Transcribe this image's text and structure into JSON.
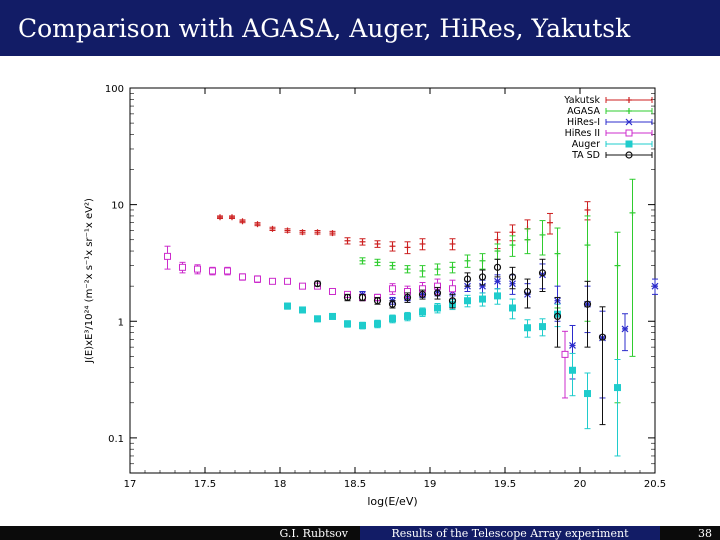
{
  "slide": {
    "title": "Comparison with AGASA, Auger, HiRes, Yakutsk",
    "author": "G.I. Rubtsov",
    "talk": "Results of the Telescope Array experiment",
    "page": "38"
  },
  "colors": {
    "title_bar": "#121c66",
    "footer_dark": "#0b0b0b"
  },
  "chart_data": {
    "type": "scatter",
    "xlabel": "log(E/eV)",
    "ylabel": "J(E)xE³/10²⁴ (m⁻²x s⁻¹x sr⁻¹x eV²)",
    "xlim": [
      17,
      20.5
    ],
    "ylim": [
      0.05,
      100
    ],
    "yscale": "log",
    "xticks": [
      "17",
      "17.5",
      "18",
      "18.5",
      "19",
      "19.5",
      "20",
      "20.5"
    ],
    "yticks": [
      "0.1",
      "1",
      "10",
      "100"
    ],
    "legend": {
      "placement": "top-right"
    },
    "series": [
      {
        "name": "Yakutsk",
        "color": "#cc1f1f",
        "marker": "plus",
        "points": [
          [
            17.6,
            7.8,
            0.2
          ],
          [
            17.68,
            7.8,
            0.2
          ],
          [
            17.75,
            7.2,
            0.2
          ],
          [
            17.85,
            6.8,
            0.2
          ],
          [
            17.95,
            6.2,
            0.2
          ],
          [
            18.05,
            6.0,
            0.2
          ],
          [
            18.15,
            5.8,
            0.2
          ],
          [
            18.25,
            5.8,
            0.2
          ],
          [
            18.35,
            5.7,
            0.2
          ],
          [
            18.45,
            4.9,
            0.3
          ],
          [
            18.55,
            4.8,
            0.3
          ],
          [
            18.65,
            4.6,
            0.3
          ],
          [
            18.75,
            4.4,
            0.4
          ],
          [
            18.85,
            4.3,
            0.5
          ],
          [
            18.95,
            4.6,
            0.5
          ],
          [
            19.15,
            4.6,
            0.5
          ],
          [
            19.45,
            5.0,
            0.8
          ],
          [
            19.55,
            5.8,
            0.9
          ],
          [
            19.65,
            6.2,
            1.2
          ],
          [
            19.8,
            7.0,
            1.4
          ],
          [
            20.05,
            9.0,
            1.6
          ]
        ]
      },
      {
        "name": "AGASA",
        "color": "#2fcc2f",
        "marker": "plus",
        "points": [
          [
            18.55,
            3.3,
            0.2
          ],
          [
            18.65,
            3.2,
            0.2
          ],
          [
            18.75,
            3.0,
            0.2
          ],
          [
            18.85,
            2.8,
            0.2
          ],
          [
            18.95,
            2.7,
            0.3
          ],
          [
            19.05,
            2.8,
            0.3
          ],
          [
            19.15,
            2.9,
            0.3
          ],
          [
            19.25,
            3.3,
            0.4
          ],
          [
            19.35,
            3.3,
            0.5
          ],
          [
            19.45,
            4.0,
            0.6
          ],
          [
            19.55,
            4.5,
            0.9
          ],
          [
            19.65,
            5.0,
            1.2
          ],
          [
            19.75,
            5.5,
            1.8
          ],
          [
            19.85,
            3.8,
            2.5
          ],
          [
            20.05,
            4.5,
            3.5
          ],
          [
            20.25,
            3.0,
            2.8
          ],
          [
            20.35,
            8.5,
            8.0
          ]
        ]
      },
      {
        "name": "HiRes-I",
        "color": "#2c2ccc",
        "marker": "star",
        "points": [
          [
            18.55,
            1.7,
            0.1
          ],
          [
            18.65,
            1.6,
            0.1
          ],
          [
            18.75,
            1.5,
            0.1
          ],
          [
            18.85,
            1.6,
            0.1
          ],
          [
            18.95,
            1.7,
            0.1
          ],
          [
            19.05,
            1.8,
            0.15
          ],
          [
            19.15,
            1.8,
            0.15
          ],
          [
            19.25,
            2.0,
            0.2
          ],
          [
            19.35,
            2.0,
            0.25
          ],
          [
            19.45,
            2.2,
            0.3
          ],
          [
            19.55,
            2.1,
            0.4
          ],
          [
            19.65,
            1.7,
            0.4
          ],
          [
            19.75,
            2.5,
            0.6
          ],
          [
            19.85,
            1.5,
            0.5
          ],
          [
            19.95,
            0.62,
            0.3
          ],
          [
            20.05,
            1.4,
            0.6
          ],
          [
            20.15,
            0.72,
            0.5
          ],
          [
            20.3,
            0.86,
            0.3
          ],
          [
            20.5,
            2.0,
            0.3
          ]
        ]
      },
      {
        "name": "HiRes II",
        "color": "#cc2ccc",
        "marker": "square-open",
        "points": [
          [
            17.25,
            3.6,
            0.8
          ],
          [
            17.35,
            2.9,
            0.3
          ],
          [
            17.45,
            2.8,
            0.25
          ],
          [
            17.55,
            2.7,
            0.2
          ],
          [
            17.65,
            2.7,
            0.2
          ],
          [
            17.75,
            2.4,
            0.15
          ],
          [
            17.85,
            2.3,
            0.15
          ],
          [
            17.95,
            2.2,
            0.1
          ],
          [
            18.05,
            2.2,
            0.1
          ],
          [
            18.15,
            2.0,
            0.1
          ],
          [
            18.25,
            2.0,
            0.1
          ],
          [
            18.35,
            1.8,
            0.1
          ],
          [
            18.45,
            1.7,
            0.1
          ],
          [
            18.55,
            1.6,
            0.1
          ],
          [
            18.65,
            1.6,
            0.1
          ],
          [
            18.75,
            1.9,
            0.2
          ],
          [
            18.85,
            1.8,
            0.2
          ],
          [
            18.95,
            1.9,
            0.25
          ],
          [
            19.05,
            2.0,
            0.3
          ],
          [
            19.15,
            1.9,
            0.35
          ],
          [
            19.9,
            0.52,
            0.3
          ]
        ]
      },
      {
        "name": "Auger",
        "color": "#1fcccc",
        "marker": "square-filled",
        "points": [
          [
            18.05,
            1.35,
            0.08
          ],
          [
            18.15,
            1.25,
            0.07
          ],
          [
            18.25,
            1.05,
            0.06
          ],
          [
            18.35,
            1.1,
            0.06
          ],
          [
            18.45,
            0.95,
            0.06
          ],
          [
            18.55,
            0.92,
            0.06
          ],
          [
            18.65,
            0.95,
            0.07
          ],
          [
            18.75,
            1.05,
            0.08
          ],
          [
            18.85,
            1.1,
            0.09
          ],
          [
            18.95,
            1.2,
            0.1
          ],
          [
            19.05,
            1.3,
            0.12
          ],
          [
            19.15,
            1.4,
            0.14
          ],
          [
            19.25,
            1.5,
            0.17
          ],
          [
            19.35,
            1.55,
            0.2
          ],
          [
            19.45,
            1.65,
            0.25
          ],
          [
            19.55,
            1.3,
            0.25
          ],
          [
            19.65,
            0.88,
            0.15
          ],
          [
            19.75,
            0.9,
            0.15
          ],
          [
            19.85,
            1.15,
            0.25
          ],
          [
            19.95,
            0.38,
            0.15
          ],
          [
            20.05,
            0.24,
            0.12
          ],
          [
            20.25,
            0.27,
            0.2
          ]
        ]
      },
      {
        "name": "TA SD",
        "color": "#111111",
        "marker": "circle-open",
        "points": [
          [
            18.25,
            2.1,
            0.1
          ],
          [
            18.45,
            1.6,
            0.1
          ],
          [
            18.55,
            1.6,
            0.1
          ],
          [
            18.65,
            1.5,
            0.1
          ],
          [
            18.75,
            1.4,
            0.1
          ],
          [
            18.85,
            1.6,
            0.15
          ],
          [
            18.95,
            1.7,
            0.15
          ],
          [
            19.05,
            1.75,
            0.2
          ],
          [
            19.15,
            1.5,
            0.2
          ],
          [
            19.25,
            2.3,
            0.3
          ],
          [
            19.35,
            2.4,
            0.35
          ],
          [
            19.45,
            2.9,
            0.5
          ],
          [
            19.55,
            2.4,
            0.5
          ],
          [
            19.65,
            1.8,
            0.5
          ],
          [
            19.75,
            2.6,
            0.8
          ],
          [
            19.85,
            1.1,
            0.5
          ],
          [
            20.05,
            1.4,
            0.8
          ],
          [
            20.15,
            0.73,
            0.6
          ]
        ]
      }
    ]
  }
}
